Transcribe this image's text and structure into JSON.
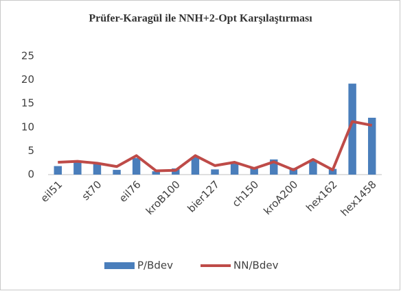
{
  "chart_data": {
    "type": "bar",
    "title": "Prüfer-Karagül ile NNH+2-Opt Karşılaştırması",
    "categories": [
      "eil51",
      null,
      "st70",
      null,
      "eil76",
      null,
      "kroB100",
      null,
      "bier127",
      null,
      "ch150",
      null,
      "kroA200",
      null,
      "hex162",
      null,
      "hex1458"
    ],
    "series": [
      {
        "name": "P/Bdev",
        "type": "bar",
        "color": "#4a7ebb",
        "values": [
          1.8,
          2.7,
          2.4,
          1.0,
          3.5,
          0.7,
          1.3,
          3.7,
          1.1,
          2.3,
          1.6,
          3.2,
          1.4,
          3.0,
          1.2,
          19.2,
          12.0
        ]
      },
      {
        "name": "NN/Bdev",
        "type": "line",
        "color": "#be4b48",
        "values": [
          2.6,
          2.8,
          2.4,
          1.7,
          4.0,
          0.8,
          0.9,
          4.0,
          1.9,
          2.6,
          1.3,
          2.7,
          1.0,
          3.2,
          1.0,
          11.2,
          10.4
        ]
      }
    ],
    "ylim": [
      0,
      25
    ],
    "yticks": [
      0,
      5,
      10,
      15,
      20,
      25
    ],
    "grid": false,
    "legend": "bottom"
  }
}
